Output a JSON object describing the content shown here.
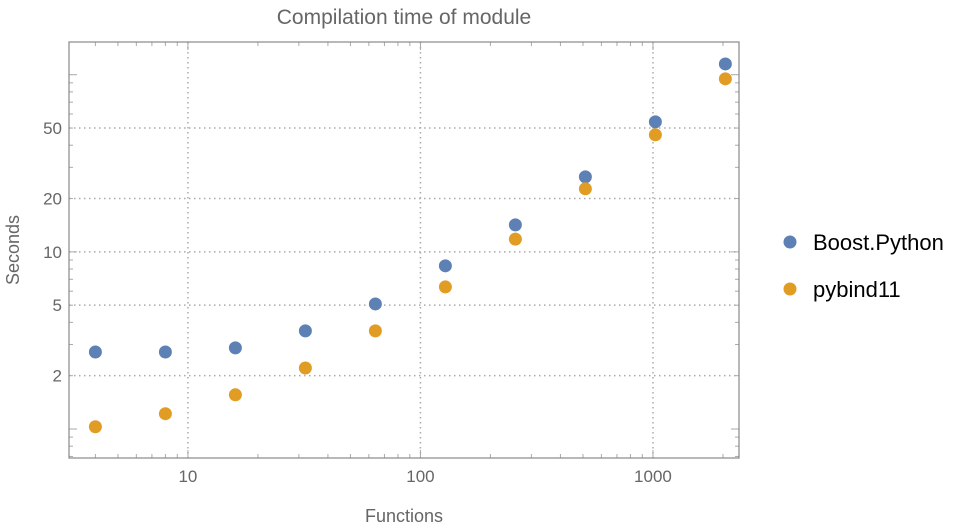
{
  "chart_data": {
    "type": "scatter",
    "title": "Compilation time of module",
    "xlabel": "Functions",
    "ylabel": "Seconds",
    "xscale": "log",
    "yscale": "log",
    "xlim": [
      3.08,
      2344
    ],
    "ylim": [
      0.686,
      153
    ],
    "grid": true,
    "legend_position": "right",
    "x_ticks": [
      10,
      100,
      1000
    ],
    "y_ticks": [
      2,
      5,
      10,
      20,
      50
    ],
    "x": [
      4,
      8,
      16,
      32,
      64,
      128,
      256,
      512,
      1024,
      2048
    ],
    "series": [
      {
        "name": "Boost.Python",
        "color": "#5e81b5",
        "values": [
          2.72,
          2.72,
          2.87,
          3.58,
          5.08,
          8.34,
          14.2,
          26.5,
          54.2,
          115
        ]
      },
      {
        "name": "pybind11",
        "color": "#e19c24",
        "values": [
          1.03,
          1.22,
          1.56,
          2.21,
          3.58,
          6.34,
          11.8,
          22.7,
          45.8,
          94.8
        ]
      }
    ]
  }
}
